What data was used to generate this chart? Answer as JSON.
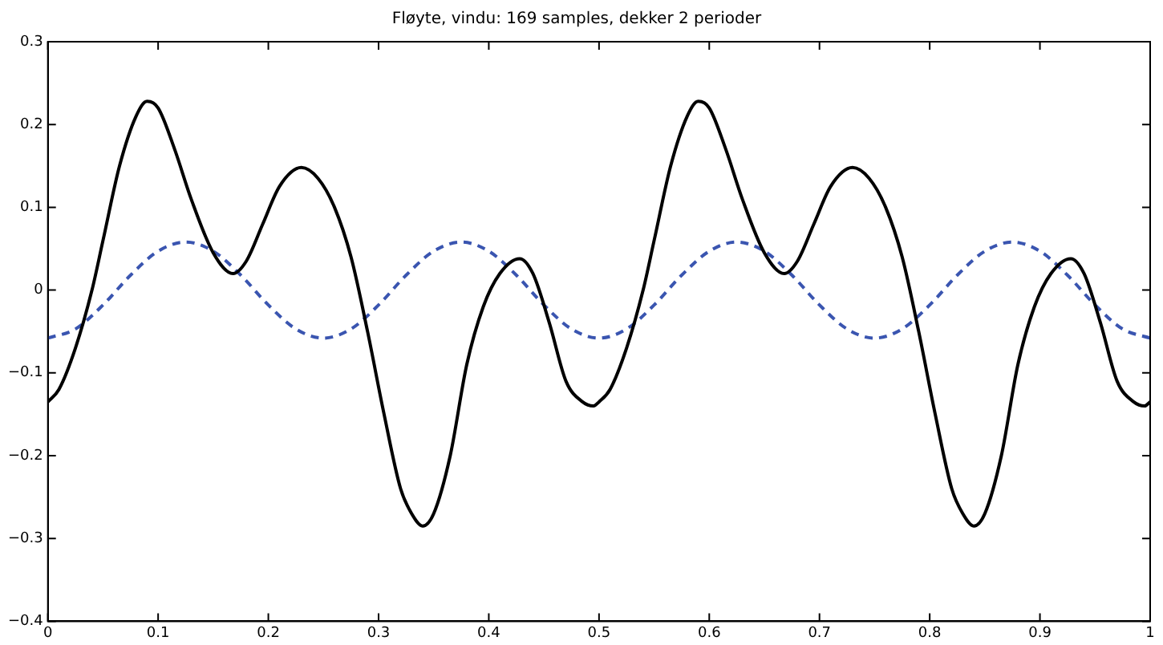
{
  "chart_data": {
    "type": "line",
    "title": "Fløyte, vindu: 169 samples, dekker 2 perioder",
    "xlim": [
      0,
      1
    ],
    "ylim": [
      -0.4,
      0.3
    ],
    "xticks": [
      0,
      0.1,
      0.2,
      0.3,
      0.4,
      0.5,
      0.6,
      0.7,
      0.8,
      0.9,
      1
    ],
    "yticks": [
      -0.4,
      -0.3,
      -0.2,
      -0.1,
      0,
      0.1,
      0.2,
      0.3
    ],
    "grid": false,
    "legend": false,
    "marker": "none",
    "series": [
      {
        "color": "#000000",
        "line_style": "solid",
        "x": [
          0,
          0.01,
          0.025,
          0.04,
          0.05,
          0.065,
          0.08,
          0.09,
          0.1,
          0.115,
          0.13,
          0.15,
          0.168,
          0.18,
          0.195,
          0.21,
          0.23,
          0.245,
          0.26,
          0.275,
          0.29,
          0.305,
          0.32,
          0.33,
          0.34,
          0.35,
          0.365,
          0.38,
          0.395,
          0.41,
          0.428,
          0.44,
          0.455,
          0.47,
          0.485,
          0.495,
          0.5,
          0.51,
          0.525,
          0.54,
          0.55,
          0.565,
          0.58,
          0.59,
          0.6,
          0.615,
          0.63,
          0.65,
          0.668,
          0.68,
          0.695,
          0.71,
          0.73,
          0.745,
          0.76,
          0.775,
          0.79,
          0.805,
          0.82,
          0.83,
          0.84,
          0.85,
          0.865,
          0.88,
          0.895,
          0.91,
          0.928,
          0.94,
          0.955,
          0.97,
          0.985,
          0.995,
          1
        ],
        "values": [
          -0.135,
          -0.12,
          -0.07,
          0,
          0.06,
          0.15,
          0.21,
          0.228,
          0.22,
          0.17,
          0.11,
          0.045,
          0.02,
          0.035,
          0.08,
          0.125,
          0.148,
          0.135,
          0.1,
          0.04,
          -0.05,
          -0.15,
          -0.24,
          -0.27,
          -0.285,
          -0.27,
          -0.2,
          -0.09,
          -0.02,
          0.02,
          0.038,
          0.02,
          -0.04,
          -0.11,
          -0.135,
          -0.14,
          -0.135,
          -0.12,
          -0.07,
          0,
          0.06,
          0.15,
          0.21,
          0.228,
          0.22,
          0.17,
          0.11,
          0.045,
          0.02,
          0.035,
          0.08,
          0.125,
          0.148,
          0.135,
          0.1,
          0.04,
          -0.05,
          -0.15,
          -0.24,
          -0.27,
          -0.285,
          -0.27,
          -0.2,
          -0.09,
          -0.02,
          0.02,
          0.038,
          0.02,
          -0.04,
          -0.11,
          -0.135,
          -0.14,
          -0.135
        ]
      },
      {
        "color": "#3a55b0",
        "line_style": "dashed",
        "x": [
          0,
          0.025,
          0.05,
          0.075,
          0.1,
          0.125,
          0.15,
          0.175,
          0.2,
          0.225,
          0.25,
          0.275,
          0.3,
          0.325,
          0.35,
          0.375,
          0.4,
          0.425,
          0.45,
          0.475,
          0.5,
          0.525,
          0.55,
          0.575,
          0.6,
          0.625,
          0.65,
          0.675,
          0.7,
          0.725,
          0.75,
          0.775,
          0.8,
          0.825,
          0.85,
          0.875,
          0.9,
          0.925,
          0.95,
          0.975,
          1
        ],
        "values": [
          -0.058,
          -0.047,
          -0.018,
          0.018,
          0.047,
          0.058,
          0.047,
          0.018,
          -0.018,
          -0.047,
          -0.058,
          -0.047,
          -0.018,
          0.018,
          0.047,
          0.058,
          0.047,
          0.018,
          -0.018,
          -0.047,
          -0.058,
          -0.047,
          -0.018,
          0.018,
          0.047,
          0.058,
          0.047,
          0.018,
          -0.018,
          -0.047,
          -0.058,
          -0.047,
          -0.018,
          0.018,
          0.047,
          0.058,
          0.047,
          0.018,
          -0.018,
          -0.047,
          -0.058
        ]
      }
    ]
  }
}
